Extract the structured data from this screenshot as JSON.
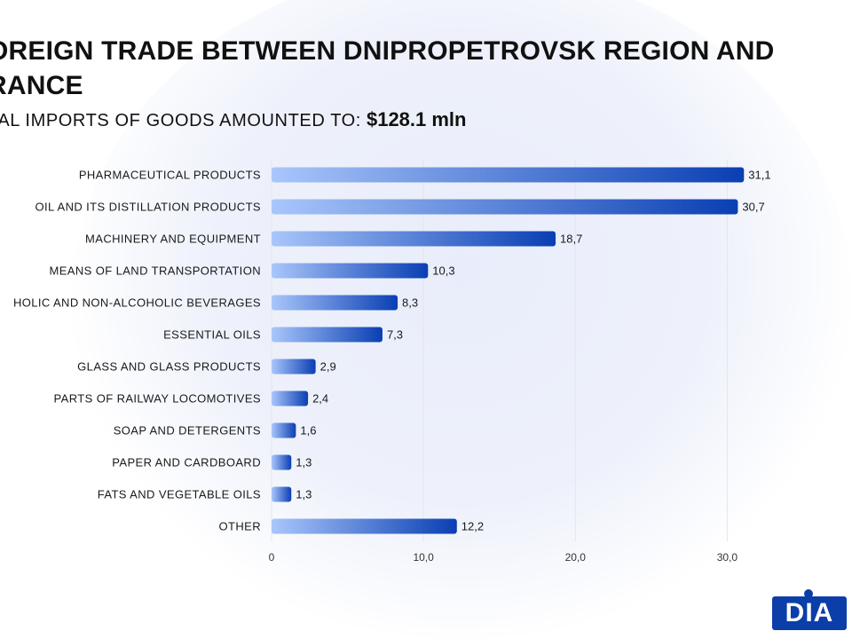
{
  "header": {
    "title": "OREIGN TRADE BETWEEN DNIPROPETROVSK REGION AND RANCE",
    "subtitle_text": "TAL IMPORTS OF GOODS AMOUNTED TO:",
    "subtitle_value": "$128.1 mln"
  },
  "logo": {
    "text": "DIA"
  },
  "colors": {
    "bar_start": "#a9c6fb",
    "bar_end": "#0a3fb3",
    "grid": "#e6e6e6"
  },
  "chart_data": {
    "type": "bar",
    "orientation": "horizontal",
    "title": "OREIGN TRADE BETWEEN DNIPROPETROVSK REGION AND RANCE",
    "categories": [
      "PHARMACEUTICAL PRODUCTS",
      "OIL AND ITS DISTILLATION PRODUCTS",
      "MACHINERY AND EQUIPMENT",
      "MEANS OF LAND TRANSPORTATION",
      "HOLIC AND NON-ALCOHOLIC BEVERAGES",
      "ESSENTIAL OILS",
      "GLASS AND GLASS PRODUCTS",
      "PARTS OF RAILWAY LOCOMOTIVES",
      "SOAP AND DETERGENTS",
      "PAPER AND CARDBOARD",
      "FATS AND VEGETABLE OILS",
      "OTHER"
    ],
    "values": [
      31.1,
      30.7,
      18.7,
      10.3,
      8.3,
      7.3,
      2.9,
      2.4,
      1.6,
      1.3,
      1.3,
      12.2
    ],
    "value_labels": [
      "31,1",
      "30,7",
      "18,7",
      "10,3",
      "8,3",
      "7,3",
      "2,9",
      "2,4",
      "1,6",
      "1,3",
      "1,3",
      "12,2"
    ],
    "x_ticks": [
      0,
      10,
      20,
      30
    ],
    "x_tick_labels": [
      "0",
      "10,0",
      "20,0",
      "30,0"
    ],
    "xlim": [
      0,
      30.5
    ],
    "xlabel": "",
    "ylabel": "",
    "grid": true,
    "legend": "none"
  }
}
